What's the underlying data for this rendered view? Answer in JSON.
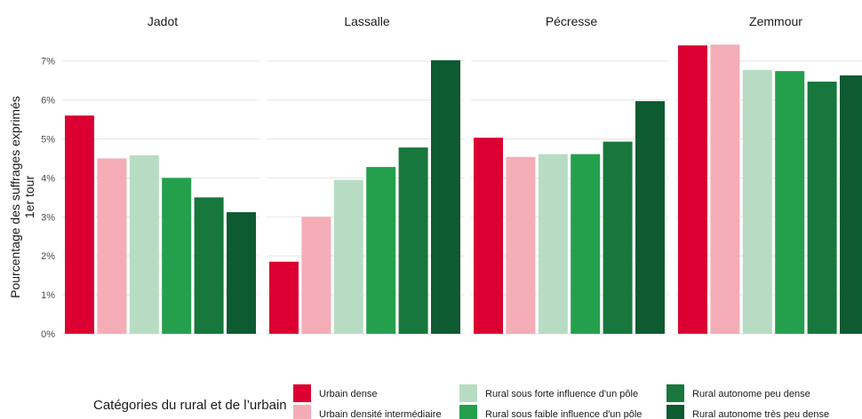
{
  "chart_data": {
    "type": "bar",
    "ylabel": "Pourcentage des suffrages exprimés\n1er tour",
    "y_ticks": [
      "0%",
      "1%",
      "2%",
      "3%",
      "4%",
      "5%",
      "6%",
      "7%"
    ],
    "ylim": [
      0,
      7.4
    ],
    "grid": true,
    "legend_position": "bottom",
    "legend_title": "Catégories du rural et de l’urbain",
    "categories": [
      "Urbain dense",
      "Urbain densité intermédiaire",
      "Rural sous forte influence d'un pôle",
      "Rural sous faible influence d'un pôle",
      "Rural autonome peu dense",
      "Rural autonome très peu dense"
    ],
    "colors": [
      "#dc0032",
      "#f4adb6",
      "#b8dcc3",
      "#24a04c",
      "#17773c",
      "#0e5a31"
    ],
    "panels": [
      {
        "name": "Jadot",
        "values": [
          5.6,
          4.5,
          4.58,
          4.0,
          3.5,
          3.12
        ]
      },
      {
        "name": "Lassalle",
        "values": [
          1.85,
          3.0,
          3.95,
          4.28,
          4.78,
          7.02
        ]
      },
      {
        "name": "Pécresse",
        "values": [
          5.03,
          4.54,
          4.61,
          4.61,
          4.93,
          5.97
        ]
      },
      {
        "name": "Zemmour",
        "values": [
          7.4,
          7.42,
          6.77,
          6.74,
          6.47,
          6.63
        ]
      }
    ]
  }
}
